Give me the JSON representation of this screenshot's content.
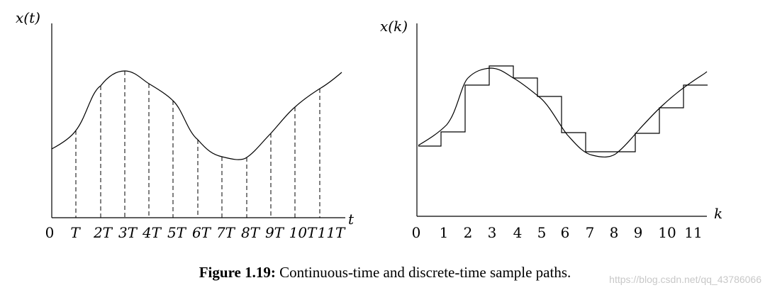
{
  "left_panel": {
    "y_label": "x(t)",
    "x_label": "t",
    "tick_labels": [
      "0",
      "T",
      "2T",
      "3T",
      "4T",
      "5T",
      "6T",
      "7T",
      "8T",
      "9T",
      "10T",
      "11T"
    ]
  },
  "right_panel": {
    "y_label": "x(k)",
    "x_label": "k",
    "tick_labels": [
      "0",
      "1",
      "2",
      "3",
      "4",
      "5",
      "6",
      "7",
      "8",
      "9",
      "10",
      "11"
    ]
  },
  "caption": {
    "label": "Figure 1.19:",
    "text": "Continuous-time and discrete-time sample paths."
  },
  "watermark": "https://blog.csdn.net/qq_43786066"
}
